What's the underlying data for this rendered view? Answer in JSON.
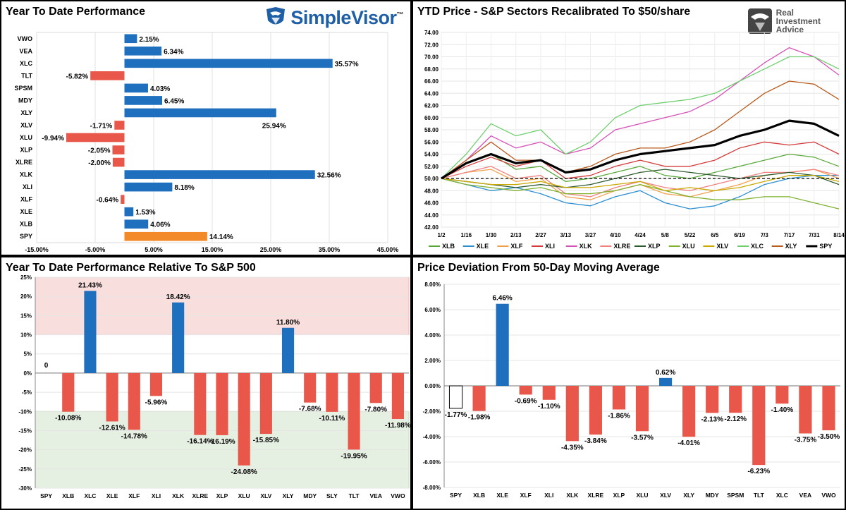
{
  "logos": {
    "simplevisor": "SimpleVisor",
    "simplevisor_tm": "™",
    "ria_line1": "Real",
    "ria_line2": "Investment",
    "ria_line3": "Advice"
  },
  "colors": {
    "blue": "#1f6fbf",
    "red": "#e9574a",
    "orange": "#f28a2a",
    "zone_red": "#f9dede",
    "zone_green": "#e6f0e2"
  },
  "chart_data": [
    {
      "id": "ytd_performance",
      "type": "bar",
      "orientation": "horizontal",
      "title": "Year To Date Performance",
      "categories": [
        "VWO",
        "VEA",
        "XLC",
        "TLT",
        "SPSM",
        "MDY",
        "XLY",
        "XLV",
        "XLU",
        "XLP",
        "XLRE",
        "XLK",
        "XLI",
        "XLF",
        "XLE",
        "XLB",
        "SPY"
      ],
      "values": [
        2.15,
        6.34,
        35.57,
        -5.82,
        4.03,
        6.45,
        25.94,
        -1.71,
        -9.94,
        -2.05,
        -2.0,
        32.56,
        8.18,
        -0.64,
        1.53,
        4.06,
        14.14
      ],
      "value_labels": [
        "2.15%",
        "6.34%",
        "35.57%",
        "-5.82%",
        "4.03%",
        "6.45%",
        "25.94%",
        "-1.71%",
        "-9.94%",
        "-2.05%",
        "-2.00%",
        "32.56%",
        "8.18%",
        "-0.64%",
        "1.53%",
        "4.06%",
        "14.14%"
      ],
      "highlight": "SPY",
      "xlim": [
        -15,
        45
      ],
      "xticks": [
        -15,
        -5,
        5,
        15,
        25,
        35,
        45
      ],
      "xtick_labels": [
        "-15.00%",
        "-5.00%",
        "5.00%",
        "15.00%",
        "25.00%",
        "35.00%",
        "45.00%"
      ]
    },
    {
      "id": "ytd_price",
      "type": "line",
      "title": "YTD Price - S&P Sectors Recalibrated To $50/share",
      "x_labels": [
        "1/2",
        "1/16",
        "1/30",
        "2/13",
        "2/27",
        "3/13",
        "3/27",
        "4/10",
        "4/24",
        "5/8",
        "5/22",
        "6/5",
        "6/19",
        "7/3",
        "7/17",
        "7/31",
        "8/14"
      ],
      "ylim": [
        42,
        74
      ],
      "yticks": [
        42,
        44,
        46,
        48,
        50,
        52,
        54,
        56,
        58,
        60,
        62,
        64,
        66,
        68,
        70,
        72,
        74
      ],
      "ytick_labels": [
        "42.00",
        "44.00",
        "46.00",
        "48.00",
        "50.00",
        "52.00",
        "54.00",
        "56.00",
        "58.00",
        "60.00",
        "62.00",
        "64.00",
        "66.00",
        "68.00",
        "70.00",
        "72.00",
        "74.00"
      ],
      "reference_line": 50,
      "series": [
        {
          "name": "XLB",
          "color": "#5aa83c",
          "values": [
            50,
            52.5,
            54,
            51.5,
            52,
            49.5,
            50,
            51,
            52,
            50.5,
            50,
            51,
            52,
            53,
            54,
            53.5,
            52
          ]
        },
        {
          "name": "XLE",
          "color": "#2b8fd0",
          "values": [
            50,
            49,
            48,
            48.5,
            47.5,
            46,
            45.5,
            47,
            48,
            46,
            45,
            45.5,
            47,
            49,
            50,
            50.5,
            50.5
          ]
        },
        {
          "name": "XLF",
          "color": "#f0a04b",
          "values": [
            50,
            51,
            51.5,
            49.5,
            50,
            47,
            46.5,
            48,
            49,
            47.5,
            47,
            48,
            49,
            50.5,
            51,
            51.5,
            50
          ]
        },
        {
          "name": "XLI",
          "color": "#d43a3a",
          "values": [
            50,
            52,
            53.5,
            52,
            53,
            50,
            50.5,
            52,
            53,
            52,
            52,
            53,
            55,
            56,
            55.5,
            56,
            54
          ]
        },
        {
          "name": "XLK",
          "color": "#d650b8",
          "values": [
            50,
            53,
            57,
            55,
            56,
            54,
            55,
            58,
            59,
            60,
            61,
            63,
            66,
            69,
            71.5,
            70,
            67
          ]
        },
        {
          "name": "XLRE",
          "color": "#f08080",
          "values": [
            50,
            51,
            52,
            50,
            50.5,
            47.5,
            47,
            48.5,
            49.5,
            48.5,
            48,
            49,
            50,
            51,
            51,
            51.5,
            50.5
          ]
        },
        {
          "name": "XLP",
          "color": "#2d5a2d",
          "values": [
            50,
            49.5,
            49,
            48.5,
            49,
            48.5,
            49,
            50,
            51,
            51.5,
            51,
            50.5,
            50,
            50.5,
            51,
            50.5,
            49
          ]
        },
        {
          "name": "XLU",
          "color": "#7fb02e",
          "values": [
            50,
            49,
            48.5,
            48,
            48.5,
            47.5,
            47.5,
            48,
            49,
            48,
            47,
            46.5,
            46.5,
            47,
            47,
            46,
            45
          ]
        },
        {
          "name": "XLV",
          "color": "#c9a800",
          "values": [
            50,
            49.5,
            49,
            49,
            49.5,
            48.5,
            48.5,
            49,
            49.5,
            48,
            48.5,
            48,
            48.5,
            49.5,
            50.5,
            50.5,
            49.5
          ]
        },
        {
          "name": "XLC",
          "color": "#6fcf6f",
          "values": [
            50,
            54,
            59,
            57,
            58,
            54,
            56,
            60,
            62,
            62.5,
            63,
            64,
            66,
            68,
            70,
            70,
            68
          ]
        },
        {
          "name": "XLY",
          "color": "#b85a1c",
          "values": [
            50,
            53,
            56,
            53,
            53,
            51,
            52,
            54,
            55,
            55,
            56,
            58,
            61,
            64,
            66,
            65.5,
            63
          ]
        },
        {
          "name": "SPY",
          "color": "#000000",
          "values": [
            50,
            52.5,
            54,
            52.5,
            53,
            51,
            51.5,
            53,
            54,
            54.5,
            55,
            55.5,
            57,
            58,
            59.5,
            59,
            57
          ]
        }
      ]
    },
    {
      "id": "relative_to_spx",
      "type": "bar",
      "title": "Year To Date Performance Relative To S&P 500",
      "categories": [
        "SPY",
        "XLB",
        "XLC",
        "XLE",
        "XLF",
        "XLI",
        "XLK",
        "XLRE",
        "XLP",
        "XLU",
        "XLV",
        "XLY",
        "MDY",
        "SLY",
        "TLT",
        "VEA",
        "VWO"
      ],
      "values": [
        0,
        -10.08,
        21.43,
        -12.61,
        -14.78,
        -5.96,
        18.42,
        -16.14,
        -16.19,
        -24.08,
        -15.85,
        11.8,
        -7.68,
        -10.11,
        -19.95,
        -7.8,
        -11.98
      ],
      "value_labels": [
        "0",
        "-10.08%",
        "21.43%",
        "-12.61%",
        "-14.78%",
        "-5.96%",
        "18.42%",
        "-16.14%",
        "-16.19%",
        "-24.08%",
        "-15.85%",
        "11.80%",
        "-7.68%",
        "-10.11%",
        "-19.95%",
        "-7.80%",
        "-11.98%"
      ],
      "ylim": [
        -30,
        25
      ],
      "yticks": [
        -30,
        -25,
        -20,
        -15,
        -10,
        -5,
        0,
        5,
        10,
        15,
        20,
        25
      ],
      "ytick_labels": [
        "-30%",
        "-25%",
        "-20%",
        "-15%",
        "-10%",
        "-5%",
        "0%",
        "5%",
        "10%",
        "15%",
        "20%",
        "25%"
      ],
      "zones": [
        {
          "from": 10,
          "to": 25,
          "color": "red"
        },
        {
          "from": -30,
          "to": -10,
          "color": "green"
        }
      ]
    },
    {
      "id": "deviation_50dma",
      "type": "bar",
      "title": "Price Deviation From 50-Day Moving Average",
      "categories": [
        "SPY",
        "XLB",
        "XLE",
        "XLF",
        "XLI",
        "XLK",
        "XLRE",
        "XLP",
        "XLU",
        "XLV",
        "XLY",
        "MDY",
        "SPSM",
        "TLT",
        "XLC",
        "VEA",
        "VWO"
      ],
      "values": [
        -1.77,
        -1.98,
        6.46,
        -0.69,
        -1.1,
        -4.35,
        -3.84,
        -1.86,
        -3.57,
        0.62,
        -4.01,
        -2.13,
        -2.12,
        -6.23,
        -1.4,
        -3.75,
        -3.5
      ],
      "value_labels": [
        "-1.77%",
        "-1.98%",
        "6.46%",
        "-0.69%",
        "-1.10%",
        "-4.35%",
        "-3.84%",
        "-1.86%",
        "-3.57%",
        "0.62%",
        "-4.01%",
        "-2.13%",
        "-2.12%",
        "-6.23%",
        "-1.40%",
        "-3.75%",
        "-3.50%"
      ],
      "highlight": "SPY",
      "ylim": [
        -8,
        8
      ],
      "yticks": [
        -8,
        -6,
        -4,
        -2,
        0,
        2,
        4,
        6,
        8
      ],
      "ytick_labels": [
        "-8.00%",
        "-6.00%",
        "-4.00%",
        "-2.00%",
        "0.00%",
        "2.00%",
        "4.00%",
        "6.00%",
        "8.00%"
      ]
    }
  ]
}
